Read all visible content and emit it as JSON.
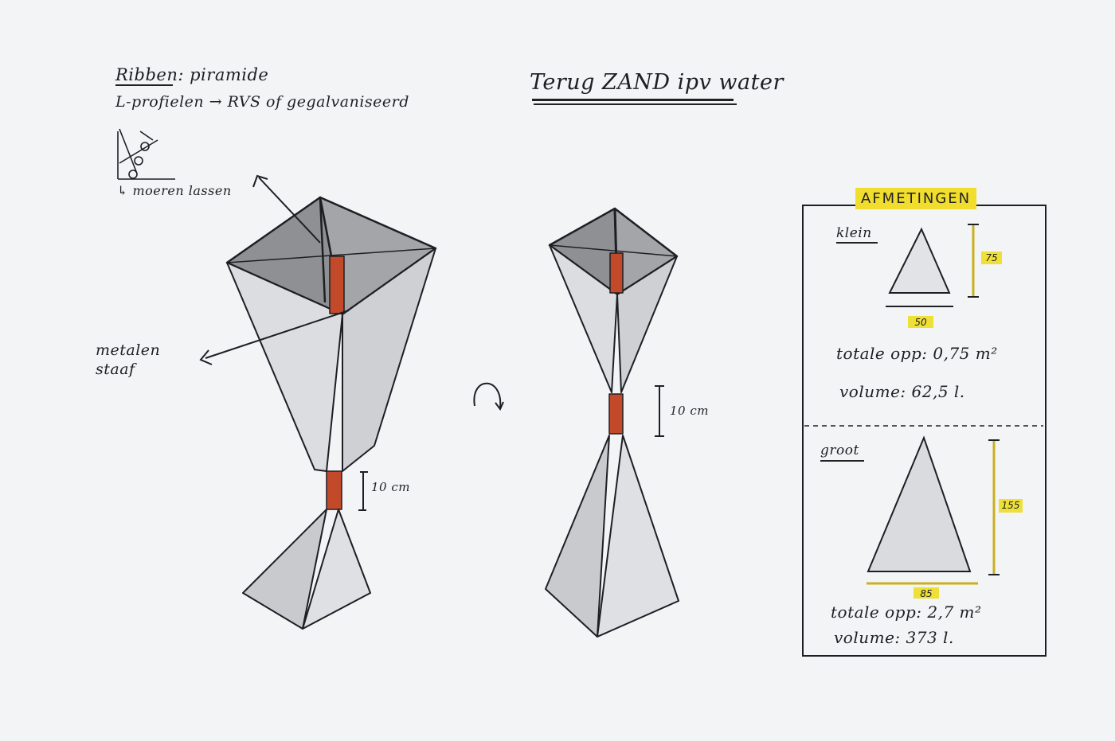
{
  "title": "Terug ZAND ipv water",
  "notes": {
    "ribben": "Ribben: piramide",
    "profielen": "L-profielen → RVS of gegalvaniseerd",
    "moeren": "↳ moeren lassen",
    "metalen_staaf": "metalen staaf"
  },
  "dimensions": {
    "left_rod": "10 cm",
    "right_rod": "10 cm"
  },
  "afmetingen": {
    "header": "AFMETINGEN",
    "klein": {
      "label": "klein",
      "height": "75",
      "base": "50",
      "opp": "totale opp:  0,75 m²",
      "volume": "volume:  62,5 l."
    },
    "groot": {
      "label": "groot",
      "height": "155",
      "base": "85",
      "opp": "totale opp:  2,7 m²",
      "volume": "volume:  373 l."
    }
  },
  "colors": {
    "paper": "#f3f4f6",
    "ink": "#1d1f24",
    "rod": "#c24a2a",
    "highlight": "#f1dd2e",
    "dark_face": "#8a8c90",
    "light_face": "#d9dadd"
  }
}
